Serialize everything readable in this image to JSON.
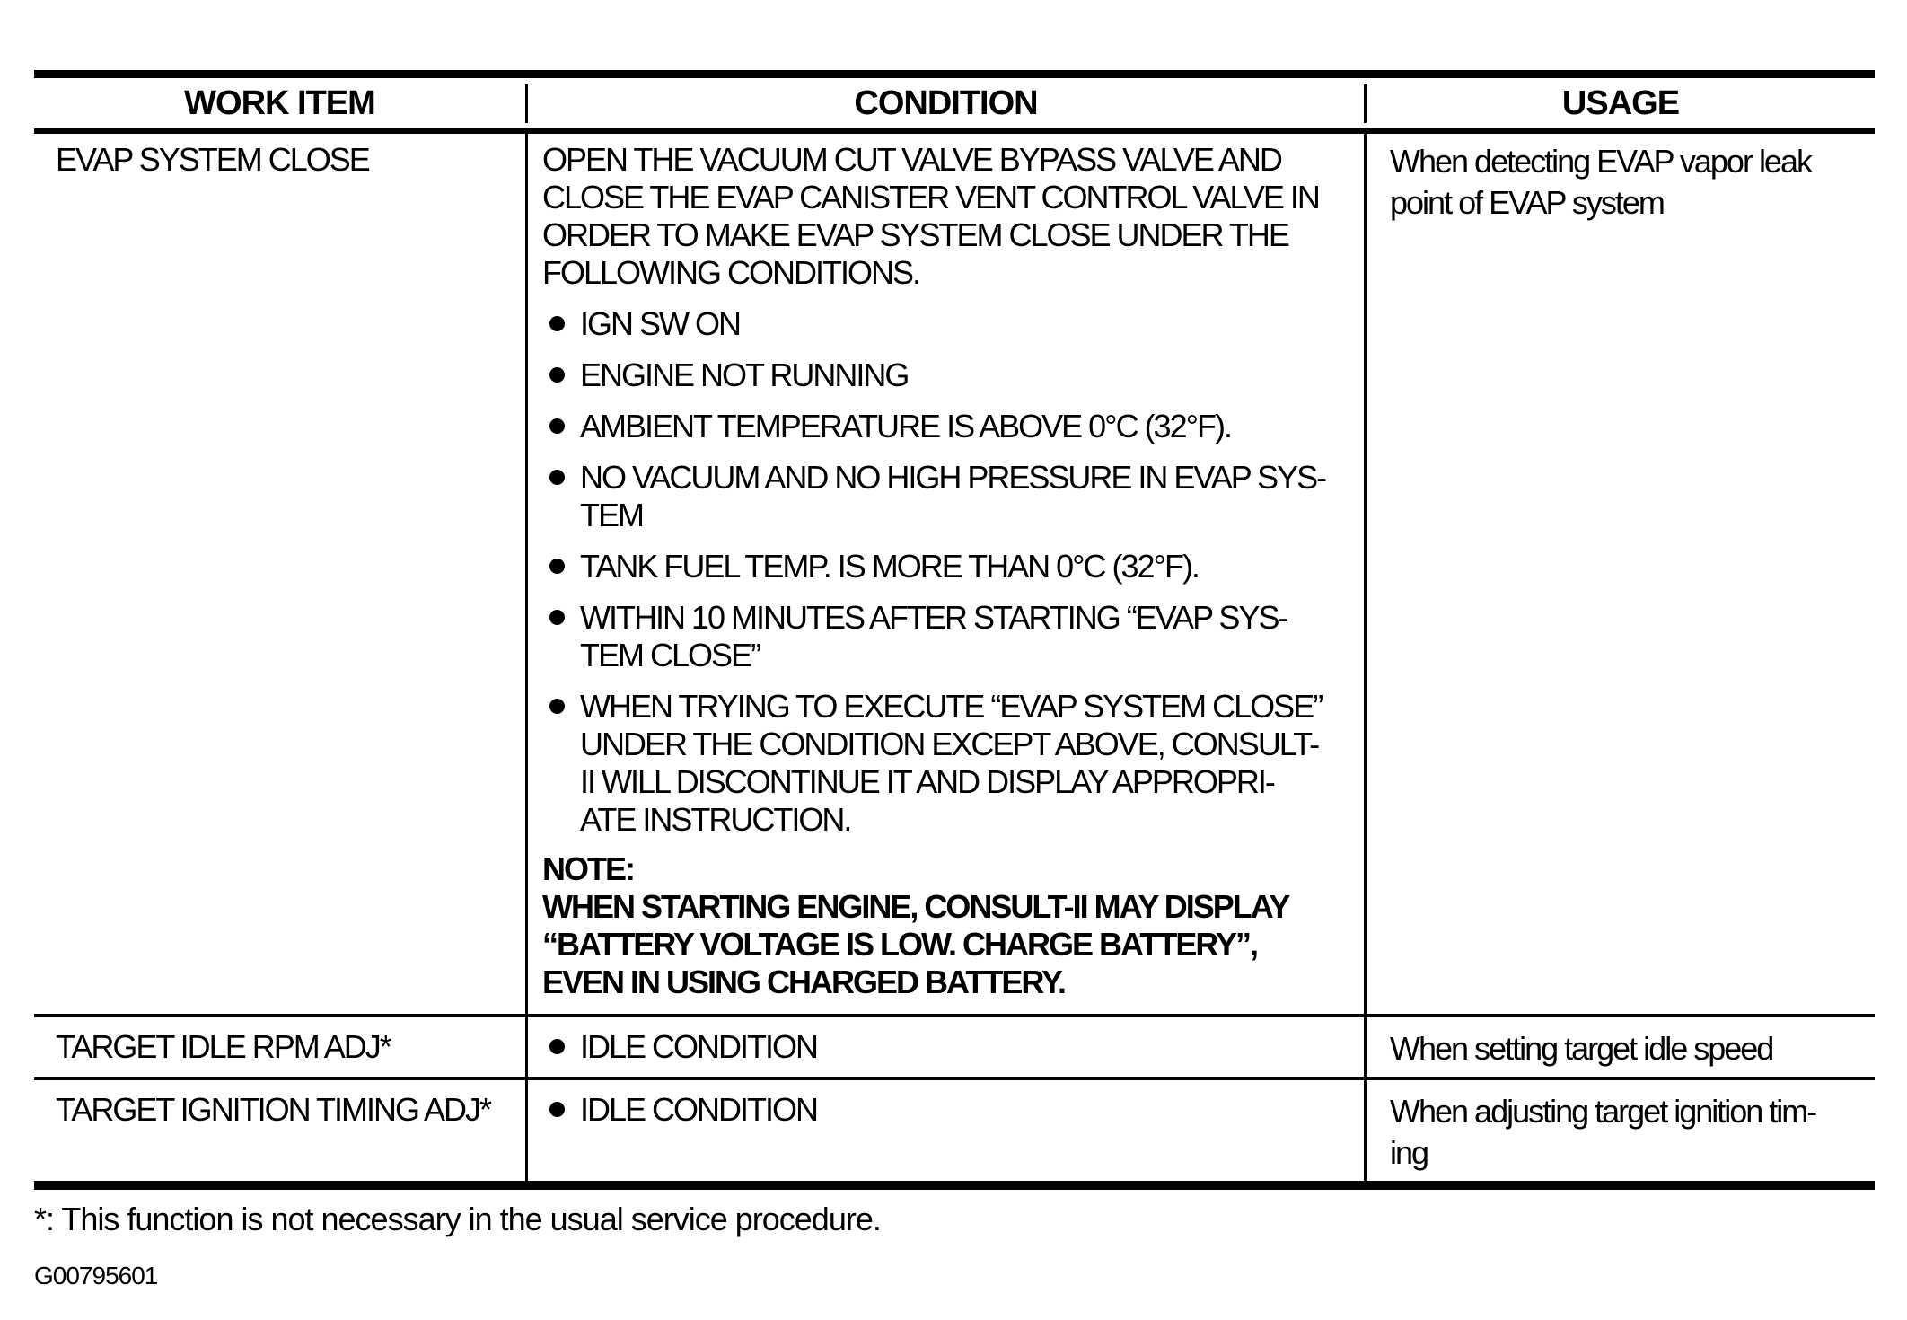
{
  "page": {
    "background": "#ffffff",
    "ink": "#000000"
  },
  "table": {
    "columns": [
      "WORK ITEM",
      "CONDITION",
      "USAGE"
    ],
    "rows": [
      {
        "work_item": "EVAP SYSTEM CLOSE",
        "condition": {
          "intro": "OPEN THE VACUUM CUT VALVE BYPASS VALVE AND\nCLOSE THE EVAP CANISTER VENT CONTROL VALVE IN\nORDER TO MAKE EVAP SYSTEM CLOSE UNDER THE\nFOLLOWING CONDITIONS.",
          "bullets": [
            "IGN SW ON",
            "ENGINE NOT RUNNING",
            "AMBIENT TEMPERATURE IS ABOVE 0°C (32°F).",
            "NO VACUUM AND NO HIGH PRESSURE IN EVAP SYS-\nTEM",
            "TANK FUEL TEMP. IS MORE THAN 0°C (32°F).",
            "WITHIN 10 MINUTES AFTER STARTING “EVAP SYS-\nTEM CLOSE”",
            "WHEN TRYING TO EXECUTE “EVAP SYSTEM CLOSE”\nUNDER THE CONDITION EXCEPT ABOVE, CONSULT-\nII WILL DISCONTINUE IT AND DISPLAY APPROPRI-\nATE INSTRUCTION."
          ],
          "note_label": "NOTE:",
          "note": "WHEN STARTING ENGINE, CONSULT-II MAY DISPLAY\n“BATTERY VOLTAGE IS LOW. CHARGE BATTERY”,\nEVEN IN USING CHARGED BATTERY."
        },
        "usage": "When detecting EVAP vapor leak\npoint of EVAP system"
      },
      {
        "work_item": "TARGET IDLE RPM ADJ*",
        "condition": {
          "bullets": [
            "IDLE CONDITION"
          ]
        },
        "usage": "When setting target idle speed"
      },
      {
        "work_item": "TARGET IGNITION TIMING ADJ*",
        "condition": {
          "bullets": [
            "IDLE CONDITION"
          ]
        },
        "usage": "When adjusting target ignition tim-\ning"
      }
    ]
  },
  "footnote": "*: This function is not necessary in the usual service procedure.",
  "figure_code": "G00795601"
}
